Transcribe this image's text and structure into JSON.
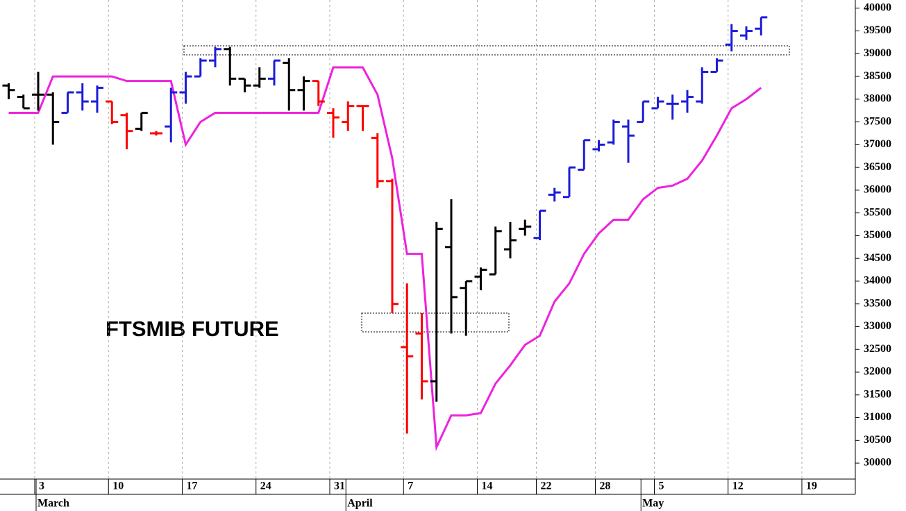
{
  "chart_data": {
    "type": "ohlc",
    "annotation": "FTSMIB FUTURE",
    "categories": [
      null,
      null,
      "3",
      null,
      null,
      null,
      null,
      "10",
      null,
      null,
      null,
      null,
      "17",
      null,
      null,
      null,
      null,
      "24",
      null,
      null,
      null,
      null,
      "31",
      null,
      null,
      null,
      null,
      "7",
      null,
      null,
      null,
      null,
      "14",
      null,
      null,
      null,
      "22",
      null,
      null,
      null,
      "28",
      null,
      null,
      null,
      "5",
      null,
      null,
      null,
      null,
      "12",
      null,
      null,
      null,
      null,
      "19"
    ],
    "months": [
      {
        "label": "March",
        "category": 2
      },
      {
        "label": "April",
        "category": 23
      },
      {
        "label": "May",
        "category": 43
      }
    ],
    "open": [
      38300,
      38050,
      38100,
      38100,
      37700,
      38150,
      37950,
      37950,
      37650,
      37350,
      37250,
      37400,
      38150,
      38500,
      38850,
      39100,
      38450,
      38300,
      38450,
      38800,
      38200,
      38400,
      37700,
      37500,
      37850,
      37150,
      36200,
      32550,
      32850,
      31800,
      34750,
      33850,
      34100,
      34150,
      34700,
      35150,
      34950,
      35900,
      35850,
      36450,
      36900,
      37050,
      37400,
      37500,
      37800,
      37900,
      37950,
      37950,
      38600,
      39200,
      39400,
      39550,
      null,
      null,
      null
    ],
    "high": [
      38350,
      38100,
      38600,
      38150,
      38150,
      38350,
      38300,
      37950,
      37700,
      37700,
      37300,
      38250,
      38600,
      38900,
      39150,
      39150,
      38450,
      38700,
      38850,
      38900,
      38500,
      38400,
      37800,
      37950,
      37850,
      37250,
      36250,
      33950,
      33300,
      35300,
      35800,
      34000,
      34300,
      35200,
      35300,
      35350,
      35550,
      36050,
      36500,
      37100,
      37100,
      37550,
      37550,
      37950,
      38050,
      38100,
      38200,
      38700,
      38900,
      39650,
      39600,
      39800,
      null,
      null,
      null
    ],
    "low": [
      38000,
      37800,
      37750,
      37000,
      37700,
      37750,
      37700,
      37450,
      36900,
      37300,
      37200,
      37050,
      37900,
      38500,
      38700,
      38300,
      38150,
      38250,
      38300,
      37750,
      37750,
      37850,
      37150,
      37300,
      37300,
      36050,
      33300,
      30650,
      31400,
      31350,
      32850,
      32800,
      33800,
      34150,
      34500,
      35000,
      34900,
      35750,
      35850,
      36450,
      36850,
      37000,
      36600,
      37500,
      37800,
      37550,
      37700,
      37900,
      38600,
      39050,
      39300,
      39400,
      null,
      null,
      null
    ],
    "close": [
      38200,
      37800,
      38100,
      37500,
      38150,
      37950,
      38250,
      37500,
      37300,
      37700,
      37250,
      38150,
      38500,
      38850,
      39100,
      38450,
      38300,
      38450,
      38850,
      38200,
      38400,
      37950,
      37600,
      37850,
      37850,
      36200,
      33500,
      32350,
      31800,
      35150,
      33650,
      34000,
      34250,
      35100,
      34900,
      35200,
      35550,
      35950,
      36500,
      37100,
      37000,
      37500,
      37200,
      37950,
      37950,
      37900,
      38050,
      38600,
      38850,
      39500,
      39500,
      39800,
      null,
      null,
      null
    ],
    "bar_colors": [
      "#000000",
      "#000000",
      "#000000",
      "#000000",
      "#1c1cd8",
      "#1c1cd8",
      "#1c1cd8",
      "#ff0000",
      "#ff0000",
      "#000000",
      "#ff0000",
      "#1c1cd8",
      "#1c1cd8",
      "#1c1cd8",
      "#1c1cd8",
      "#000000",
      "#000000",
      "#000000",
      "#1c1cd8",
      "#000000",
      "#000000",
      "#ff0000",
      "#ff0000",
      "#ff0000",
      "#ff0000",
      "#ff0000",
      "#ff0000",
      "#ff0000",
      "#ff0000",
      "#000000",
      "#000000",
      "#000000",
      "#000000",
      "#000000",
      "#000000",
      "#000000",
      "#1c1cd8",
      "#1c1cd8",
      "#1c1cd8",
      "#1c1cd8",
      "#1c1cd8",
      "#1c1cd8",
      "#1c1cd8",
      "#1c1cd8",
      "#1c1cd8",
      "#1c1cd8",
      "#1c1cd8",
      "#1c1cd8",
      "#1c1cd8",
      "#1c1cd8",
      "#1c1cd8",
      "#1c1cd8",
      "#000000",
      "#000000",
      "#000000"
    ],
    "stop": {
      "color": "#ee22dd",
      "values": [
        37700,
        37700,
        37700,
        38500,
        38500,
        38500,
        38500,
        38500,
        38400,
        38400,
        38400,
        38400,
        37000,
        37500,
        37700,
        37700,
        37700,
        37700,
        37700,
        37700,
        37700,
        37700,
        38700,
        38700,
        38700,
        38100,
        36700,
        34600,
        34600,
        30350,
        31050,
        31050,
        31100,
        31750,
        32150,
        32600,
        32800,
        33550,
        33950,
        34600,
        35050,
        35350,
        35350,
        35800,
        36050,
        36100,
        36250,
        36650,
        37200,
        37800,
        38000,
        38250,
        null,
        null,
        null
      ]
    },
    "ylim": [
      29650,
      40180
    ],
    "yticks": [
      30000,
      30500,
      31000,
      31500,
      32000,
      32500,
      33000,
      33500,
      34000,
      34500,
      35000,
      35500,
      36000,
      36500,
      37000,
      37500,
      38000,
      38500,
      39000,
      39500,
      40000
    ],
    "grid": true
  }
}
